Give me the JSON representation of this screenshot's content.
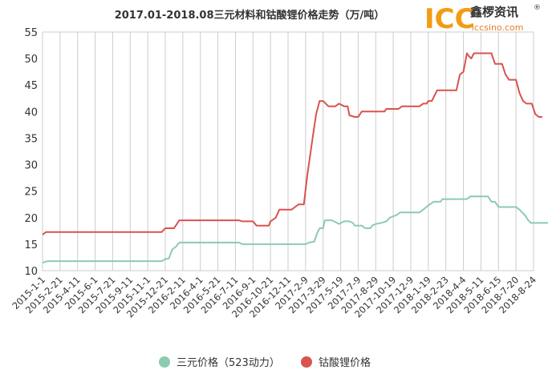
{
  "chart_data": {
    "type": "line",
    "title": "2017.01-2018.08三元材料和钴酸锂价格走势（万/吨）",
    "xlabel": "",
    "ylabel": "",
    "ylim": [
      10,
      55
    ],
    "yticks": [
      10,
      15,
      20,
      25,
      30,
      35,
      40,
      45,
      50,
      55
    ],
    "grid": "vertical",
    "legend_position": "bottom",
    "x_tick_labels": [
      "2015-1-1",
      "2015-2-21",
      "2015-4-11",
      "2015-6-1",
      "2015-7-21",
      "2015-9-11",
      "2015-11-1",
      "2015-12-21",
      "2016-2-11",
      "2016-4-1",
      "2016-5-21",
      "2016-7-11",
      "2016-9-1",
      "2016-10-21",
      "2016-12-11",
      "2017-2-9",
      "2017-3-29",
      "2017-5-19",
      "2017-7-9",
      "2017-8-29",
      "2017-10-19",
      "2017-12-9",
      "2018-1-19",
      "2018-2-23",
      "2018-4-4",
      "2018-5-11",
      "2018-6-15",
      "2018-7-20",
      "2018-8-24"
    ],
    "series": [
      {
        "name": "三元价格（523动力）",
        "color": "#8ccbb0",
        "points": [
          [
            0,
            11.5
          ],
          [
            0.3,
            11.8
          ],
          [
            6.8,
            11.8
          ],
          [
            7.0,
            12.2
          ],
          [
            7.2,
            12.3
          ],
          [
            7.4,
            14.0
          ],
          [
            7.6,
            14.5
          ],
          [
            7.8,
            15.3
          ],
          [
            11.2,
            15.3
          ],
          [
            11.4,
            15.0
          ],
          [
            15.0,
            15.0
          ],
          [
            15.2,
            15.3
          ],
          [
            15.5,
            15.5
          ],
          [
            15.65,
            17.0
          ],
          [
            15.8,
            18.0
          ],
          [
            16.0,
            18.0
          ],
          [
            16.1,
            19.5
          ],
          [
            16.5,
            19.5
          ],
          [
            16.8,
            19.0
          ],
          [
            16.9,
            18.8
          ],
          [
            17.2,
            19.3
          ],
          [
            17.5,
            19.3
          ],
          [
            17.7,
            19.0
          ],
          [
            17.8,
            18.5
          ],
          [
            18.2,
            18.5
          ],
          [
            18.4,
            18.0
          ],
          [
            18.7,
            18.0
          ],
          [
            18.8,
            18.5
          ],
          [
            19.0,
            18.8
          ],
          [
            19.3,
            19.0
          ],
          [
            19.6,
            19.3
          ],
          [
            19.8,
            20.0
          ],
          [
            20.2,
            20.5
          ],
          [
            20.4,
            21.0
          ],
          [
            21.5,
            21.0
          ],
          [
            21.7,
            21.5
          ],
          [
            22.0,
            22.3
          ],
          [
            22.3,
            23.0
          ],
          [
            22.7,
            23.0
          ],
          [
            22.8,
            23.5
          ],
          [
            24.2,
            23.5
          ],
          [
            24.4,
            24.0
          ],
          [
            25.4,
            24.0
          ],
          [
            25.6,
            23.0
          ],
          [
            25.8,
            23.0
          ],
          [
            26.0,
            22.0
          ],
          [
            27.0,
            22.0
          ],
          [
            27.2,
            21.5
          ],
          [
            27.5,
            20.5
          ],
          [
            27.7,
            19.5
          ],
          [
            27.85,
            19.0
          ],
          [
            29.0,
            19.0
          ]
        ]
      },
      {
        "name": "钴酸锂价格",
        "color": "#d9534f",
        "points": [
          [
            0,
            16.8
          ],
          [
            0.2,
            17.3
          ],
          [
            6.7,
            17.3
          ],
          [
            6.8,
            17.3
          ],
          [
            7.0,
            18.0
          ],
          [
            7.5,
            18.0
          ],
          [
            7.8,
            19.5
          ],
          [
            11.2,
            19.5
          ],
          [
            11.4,
            19.3
          ],
          [
            12.0,
            19.3
          ],
          [
            12.2,
            18.5
          ],
          [
            12.9,
            18.5
          ],
          [
            13.0,
            19.3
          ],
          [
            13.3,
            20.0
          ],
          [
            13.5,
            21.5
          ],
          [
            14.2,
            21.5
          ],
          [
            14.4,
            22.0
          ],
          [
            14.6,
            22.5
          ],
          [
            14.9,
            22.5
          ],
          [
            15.1,
            28.0
          ],
          [
            15.4,
            35.0
          ],
          [
            15.6,
            39.5
          ],
          [
            15.8,
            42.0
          ],
          [
            16.0,
            42.0
          ],
          [
            16.3,
            41.0
          ],
          [
            16.7,
            41.0
          ],
          [
            16.9,
            41.5
          ],
          [
            17.2,
            41.0
          ],
          [
            17.4,
            41.0
          ],
          [
            17.5,
            39.3
          ],
          [
            17.8,
            39.0
          ],
          [
            18.0,
            39.0
          ],
          [
            18.2,
            40.0
          ],
          [
            19.5,
            40.0
          ],
          [
            19.6,
            40.5
          ],
          [
            20.3,
            40.5
          ],
          [
            20.5,
            41.0
          ],
          [
            21.5,
            41.0
          ],
          [
            21.7,
            41.5
          ],
          [
            21.9,
            41.5
          ],
          [
            22.0,
            42.0
          ],
          [
            22.2,
            42.0
          ],
          [
            22.5,
            44.0
          ],
          [
            23.6,
            44.0
          ],
          [
            23.8,
            47.0
          ],
          [
            24.0,
            47.5
          ],
          [
            24.2,
            51.0
          ],
          [
            24.3,
            50.5
          ],
          [
            24.45,
            50.0
          ],
          [
            24.6,
            51.0
          ],
          [
            25.6,
            51.0
          ],
          [
            25.8,
            49.0
          ],
          [
            26.2,
            49.0
          ],
          [
            26.4,
            47.0
          ],
          [
            26.6,
            46.0
          ],
          [
            27.0,
            46.0
          ],
          [
            27.2,
            43.5
          ],
          [
            27.4,
            42.0
          ],
          [
            27.6,
            41.5
          ],
          [
            27.9,
            41.5
          ],
          [
            28.1,
            39.5
          ],
          [
            28.3,
            39.0
          ],
          [
            28.5,
            39.0
          ]
        ]
      }
    ]
  },
  "logo": {
    "mark": "ICC",
    "name": "鑫椤资讯",
    "url": "iccsino.com",
    "registered": "®"
  }
}
